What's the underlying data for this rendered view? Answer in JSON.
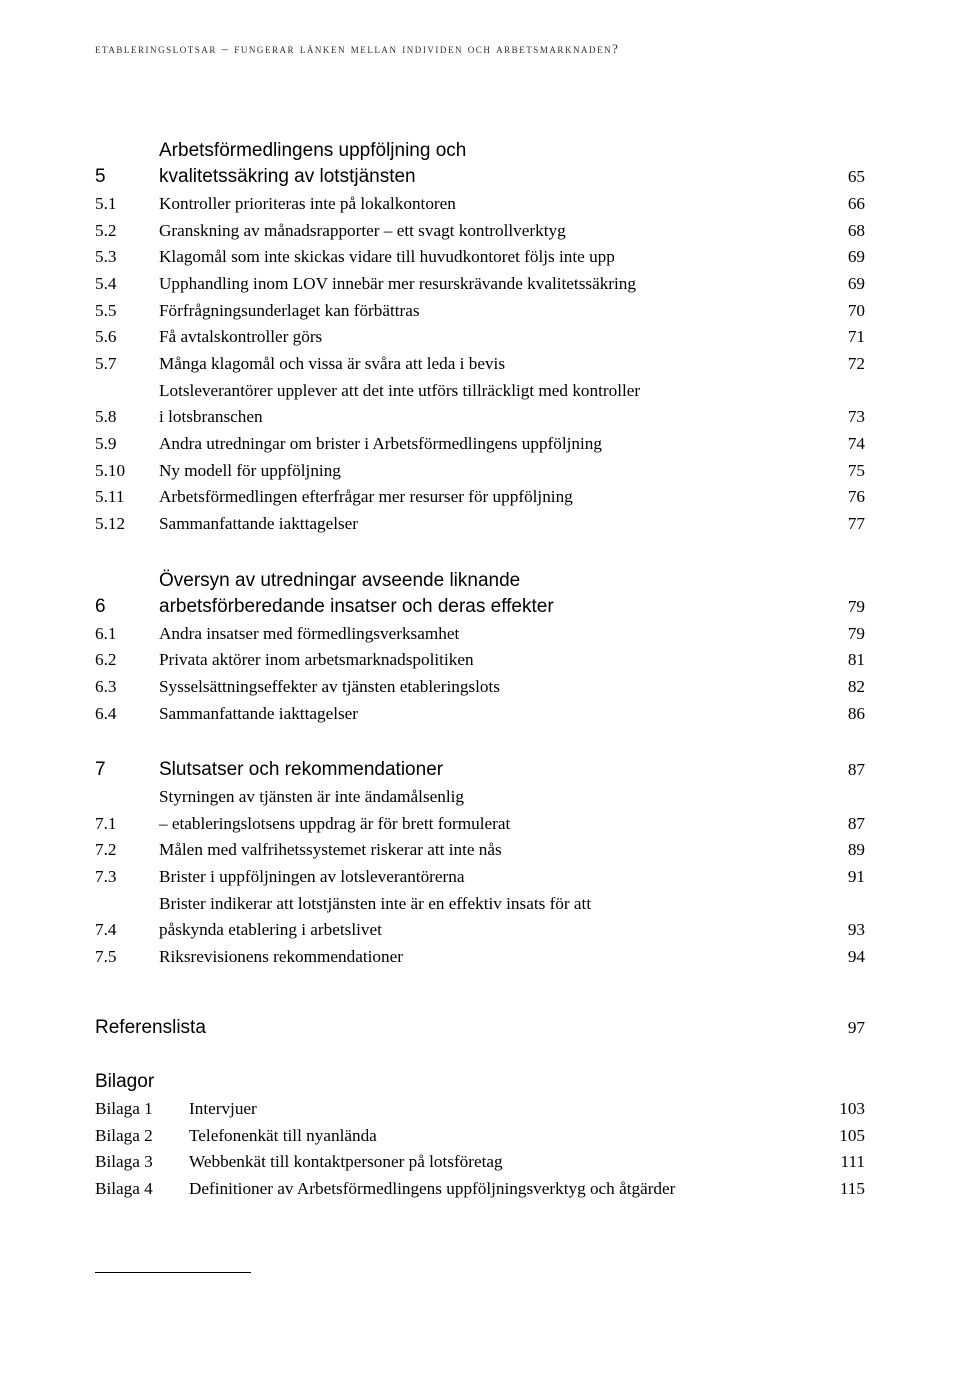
{
  "running_head": "etableringslotsar – fungerar länken mellan individen och arbetsmarknaden?",
  "chapters": [
    {
      "num": "5",
      "title_lines": [
        "Arbetsförmedlingens uppföljning och",
        "kvalitetssäkring av lotstjänsten"
      ],
      "page": "65",
      "subs": [
        {
          "num": "5.1",
          "title": "Kontroller prioriteras inte på lokalkontoren",
          "page": "66"
        },
        {
          "num": "5.2",
          "title": "Granskning av månadsrapporter – ett svagt kontrollverktyg",
          "page": "68"
        },
        {
          "num": "5.3",
          "title": "Klagomål som inte skickas vidare till huvudkontoret följs inte upp",
          "page": "69"
        },
        {
          "num": "5.4",
          "title": "Upphandling inom LOV innebär mer resurskrävande kvalitetssäkring",
          "page": "69"
        },
        {
          "num": "5.5",
          "title": "Förfrågningsunderlaget kan förbättras",
          "page": "70"
        },
        {
          "num": "5.6",
          "title": "Få avtalskontroller görs",
          "page": "71"
        },
        {
          "num": "5.7",
          "title": "Många klagomål och vissa är svåra att leda i bevis",
          "page": "72"
        },
        {
          "num": "5.8",
          "title_lines": [
            "Lotsleverantörer upplever att det inte utförs tillräckligt med kontroller",
            "i lotsbranschen"
          ],
          "page": "73"
        },
        {
          "num": "5.9",
          "title": "Andra utredningar om brister i Arbetsförmedlingens uppföljning",
          "page": "74"
        },
        {
          "num": "5.10",
          "title": "Ny modell för uppföljning",
          "page": "75"
        },
        {
          "num": "5.11",
          "title": "Arbetsförmedlingen efterfrågar mer resurser för uppföljning",
          "page": "76"
        },
        {
          "num": "5.12",
          "title": "Sammanfattande iakttagelser",
          "page": "77"
        }
      ]
    },
    {
      "num": "6",
      "title_lines": [
        "Översyn av utredningar avseende liknande",
        "arbetsförberedande insatser och deras effekter"
      ],
      "page": "79",
      "subs": [
        {
          "num": "6.1",
          "title": "Andra insatser med förmedlingsverksamhet",
          "page": "79"
        },
        {
          "num": "6.2",
          "title": "Privata aktörer inom arbetsmarknadspolitiken",
          "page": "81"
        },
        {
          "num": "6.3",
          "title": "Sysselsättningseffekter av tjänsten etableringslots",
          "page": "82"
        },
        {
          "num": "6.4",
          "title": "Sammanfattande iakttagelser",
          "page": "86"
        }
      ]
    },
    {
      "num": "7",
      "title_lines": [
        "Slutsatser och rekommendationer"
      ],
      "page": "87",
      "subs": [
        {
          "num": "7.1",
          "title_lines": [
            "Styrningen av tjänsten är inte ändamålsenlig",
            "– etableringslotsens uppdrag är för brett formulerat"
          ],
          "page": "87"
        },
        {
          "num": "7.2",
          "title": "Målen med valfrihetssystemet riskerar att inte nås",
          "page": "89"
        },
        {
          "num": "7.3",
          "title": "Brister i uppföljningen av lotsleverantörerna",
          "page": "91"
        },
        {
          "num": "7.4",
          "title_lines": [
            "Brister indikerar att lotstjänsten inte är en effektiv insats för att",
            "påskynda etablering i arbetslivet"
          ],
          "page": "93"
        },
        {
          "num": "7.5",
          "title": "Riksrevisionens rekommendationer",
          "page": "94"
        }
      ]
    }
  ],
  "references": {
    "label": "Referenslista",
    "page": "97"
  },
  "bilagor_heading": "Bilagor",
  "bilagor": [
    {
      "num": "Bilaga 1",
      "title": "Intervjuer",
      "page": "103"
    },
    {
      "num": "Bilaga 2",
      "title": "Telefonenkät till nyanlända",
      "page": "105"
    },
    {
      "num": "Bilaga 3",
      "title": "Webbenkät till kontaktpersoner på lotsföretag",
      "page": "111"
    },
    {
      "num": "Bilaga 4",
      "title": "Definitioner av Arbetsförmedlingens uppföljningsverktyg och åtgärder",
      "page": "115"
    }
  ]
}
